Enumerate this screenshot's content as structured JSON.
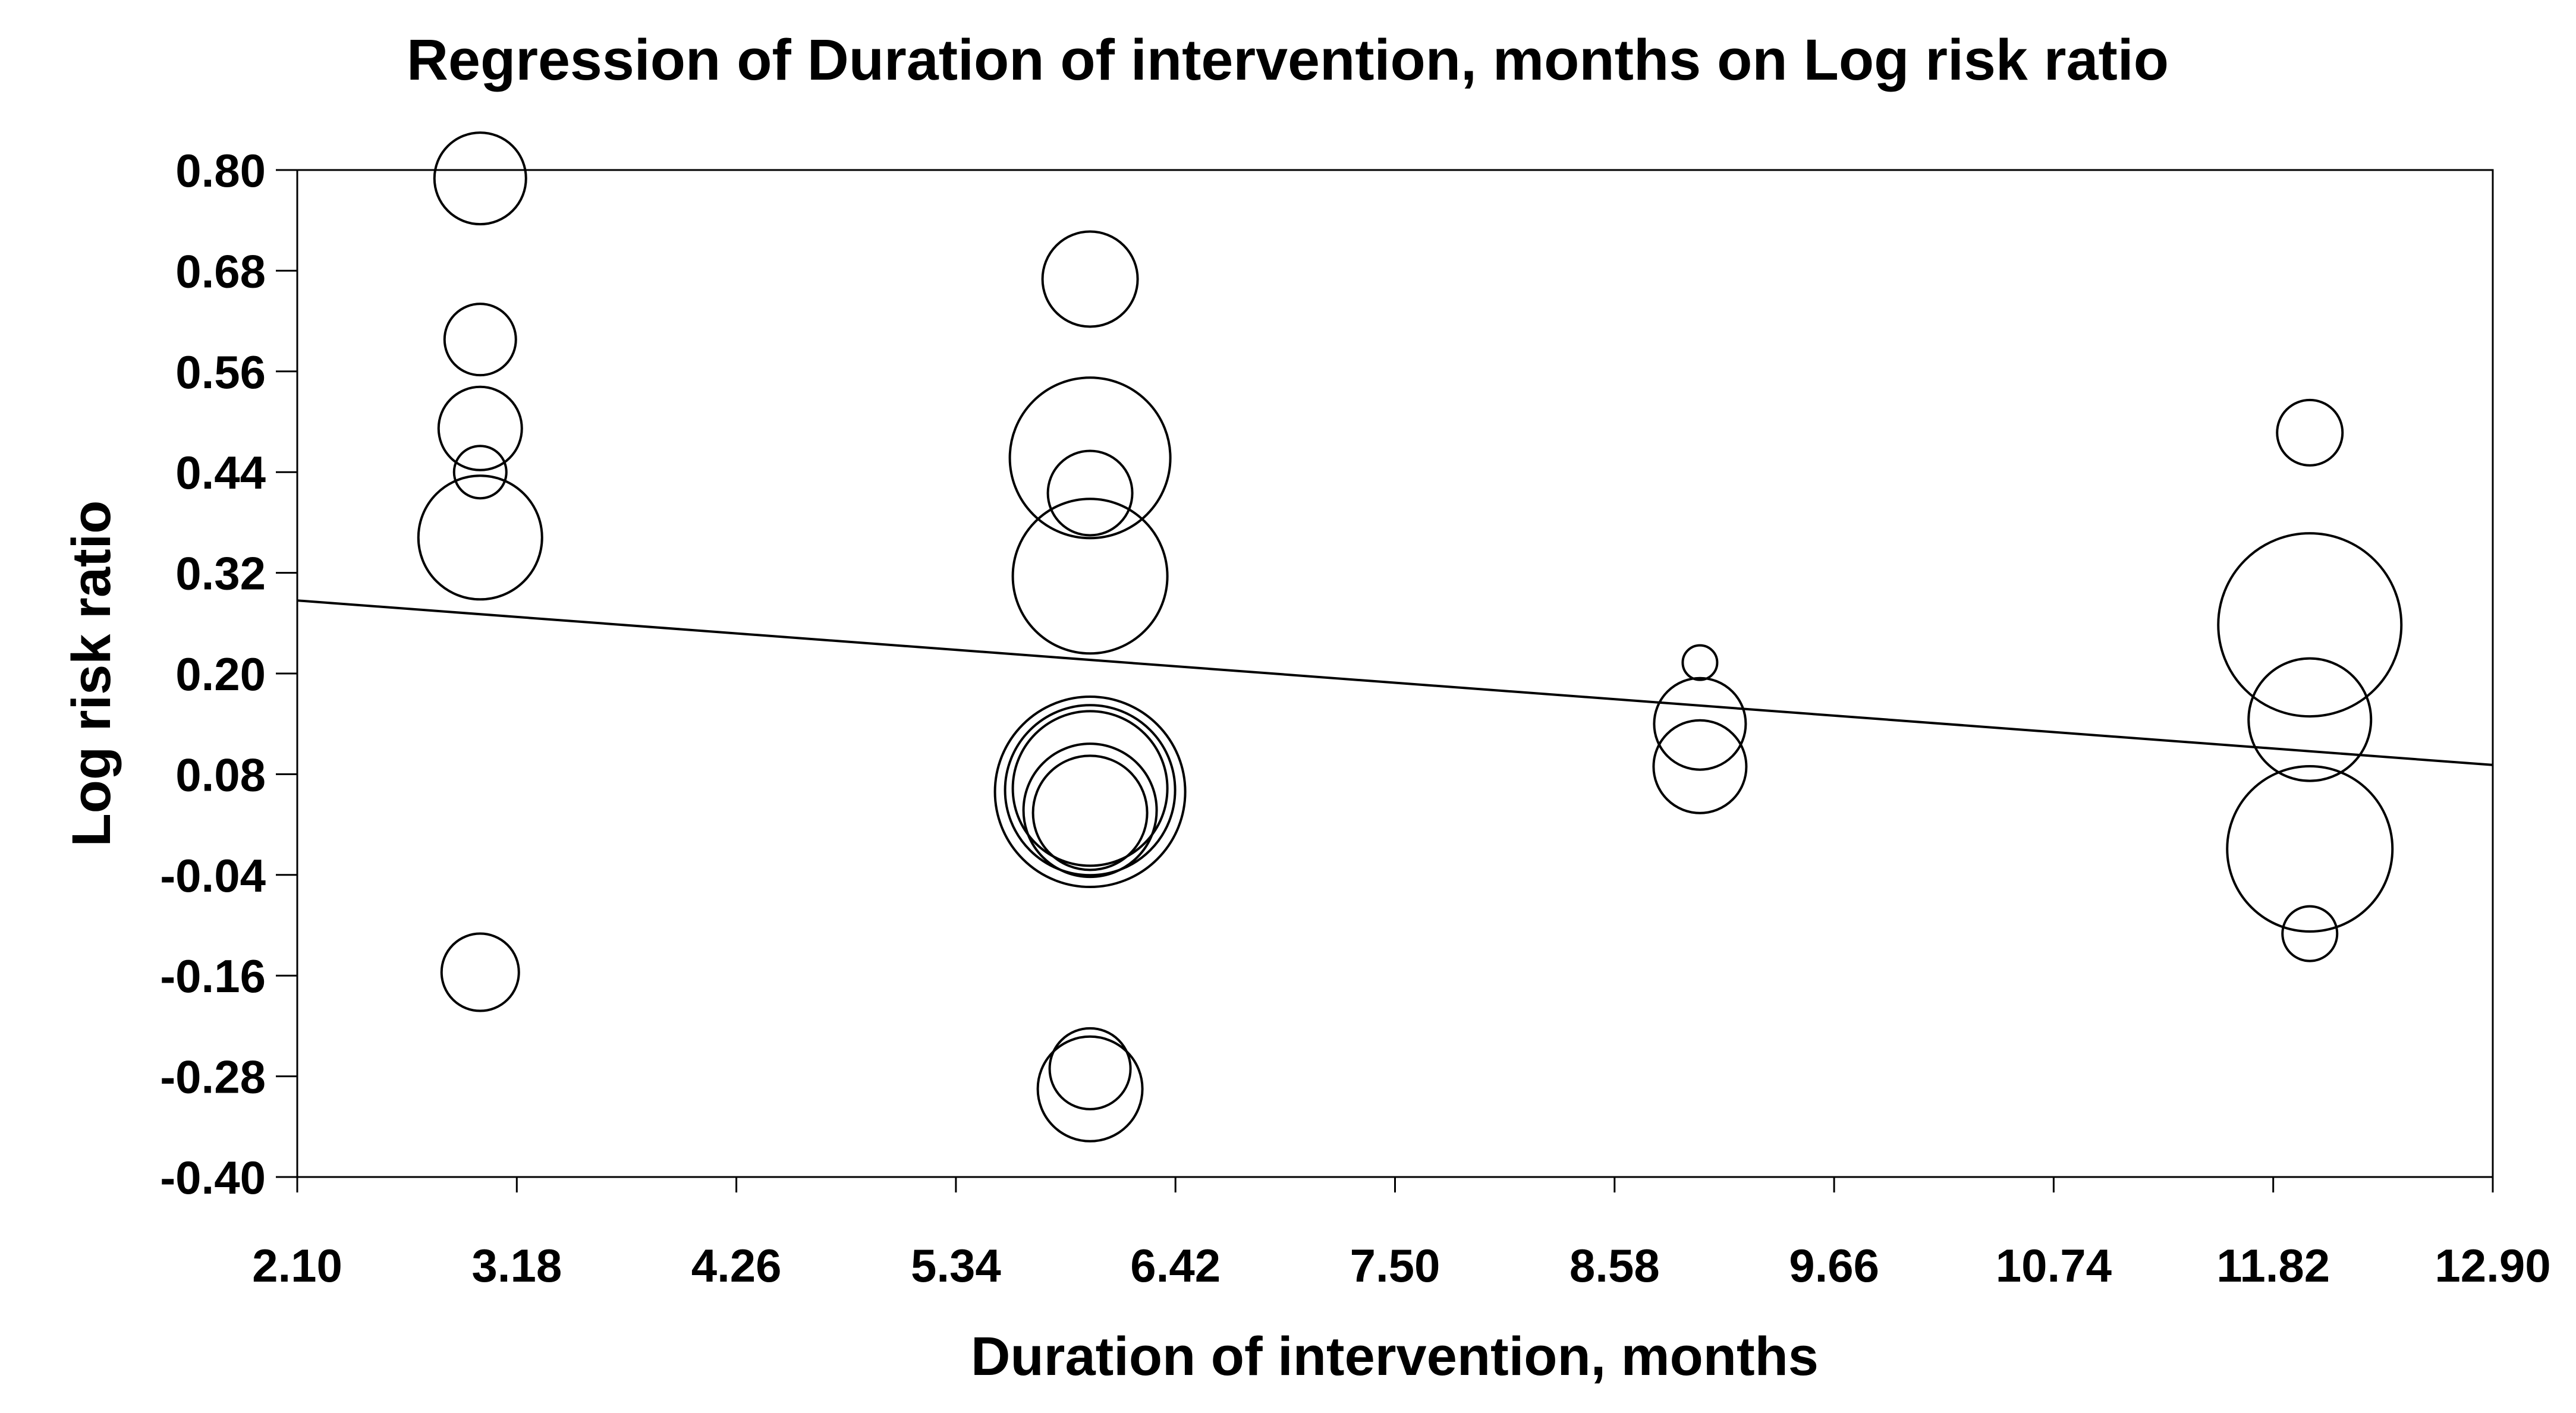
{
  "chart_data": {
    "type": "scatter",
    "subtype": "bubble-meta-regression",
    "title": "Regression of Duration of intervention, months on Log risk ratio",
    "xlabel": "Duration of intervention, months",
    "ylabel": "Log risk ratio",
    "xlim": [
      2.1,
      12.9
    ],
    "ylim": [
      -0.4,
      0.8
    ],
    "x_ticks": [
      {
        "value": 2.1,
        "label": "2.10"
      },
      {
        "value": 3.18,
        "label": "3.18"
      },
      {
        "value": 4.26,
        "label": "4.26"
      },
      {
        "value": 5.34,
        "label": "5.34"
      },
      {
        "value": 6.42,
        "label": "6.42"
      },
      {
        "value": 7.5,
        "label": "7.50"
      },
      {
        "value": 8.58,
        "label": "8.58"
      },
      {
        "value": 9.66,
        "label": "9.66"
      },
      {
        "value": 10.74,
        "label": "10.74"
      },
      {
        "value": 11.82,
        "label": "11.82"
      },
      {
        "value": 12.9,
        "label": "12.90"
      }
    ],
    "y_ticks": [
      {
        "value": 0.8,
        "label": "0.80"
      },
      {
        "value": 0.68,
        "label": "0.68"
      },
      {
        "value": 0.56,
        "label": "0.56"
      },
      {
        "value": 0.44,
        "label": "0.44"
      },
      {
        "value": 0.32,
        "label": "0.32"
      },
      {
        "value": 0.2,
        "label": "0.20"
      },
      {
        "value": 0.08,
        "label": "0.08"
      },
      {
        "value": -0.04,
        "label": "-0.04"
      },
      {
        "value": -0.16,
        "label": "-0.16"
      },
      {
        "value": -0.28,
        "label": "-0.28"
      },
      {
        "value": -0.4,
        "label": "-0.40"
      }
    ],
    "grid": false,
    "legend": "none",
    "marker_shape": "open-circle",
    "marker_color": "#000000",
    "background": "#ffffff",
    "points": [
      {
        "x": 3.0,
        "y": 0.79,
        "r": 77
      },
      {
        "x": 3.0,
        "y": 0.598,
        "r": 60
      },
      {
        "x": 3.0,
        "y": 0.492,
        "r": 70
      },
      {
        "x": 3.0,
        "y": 0.44,
        "r": 44
      },
      {
        "x": 3.0,
        "y": 0.362,
        "r": 104
      },
      {
        "x": 3.0,
        "y": -0.156,
        "r": 65
      },
      {
        "x": 6.0,
        "y": 0.67,
        "r": 80
      },
      {
        "x": 6.0,
        "y": 0.457,
        "r": 135
      },
      {
        "x": 6.0,
        "y": 0.415,
        "r": 71
      },
      {
        "x": 6.0,
        "y": 0.316,
        "r": 130
      },
      {
        "x": 6.0,
        "y": 0.059,
        "r": 160
      },
      {
        "x": 6.0,
        "y": 0.061,
        "r": 143
      },
      {
        "x": 6.0,
        "y": 0.063,
        "r": 130
      },
      {
        "x": 6.0,
        "y": 0.037,
        "r": 112
      },
      {
        "x": 6.0,
        "y": 0.034,
        "r": 96
      },
      {
        "x": 6.0,
        "y": -0.271,
        "r": 68
      },
      {
        "x": 6.0,
        "y": -0.295,
        "r": 88
      },
      {
        "x": 9.0,
        "y": 0.213,
        "r": 29
      },
      {
        "x": 9.0,
        "y": 0.14,
        "r": 77
      },
      {
        "x": 9.0,
        "y": 0.089,
        "r": 78
      },
      {
        "x": 12.0,
        "y": 0.487,
        "r": 55
      },
      {
        "x": 12.0,
        "y": 0.258,
        "r": 154
      },
      {
        "x": 12.0,
        "y": 0.145,
        "r": 103
      },
      {
        "x": 12.0,
        "y": -0.009,
        "r": 139
      },
      {
        "x": 12.0,
        "y": -0.11,
        "r": 46
      }
    ],
    "regression_line": {
      "x1": 2.1,
      "y1": 0.287,
      "x2": 12.9,
      "y2": 0.091
    }
  }
}
